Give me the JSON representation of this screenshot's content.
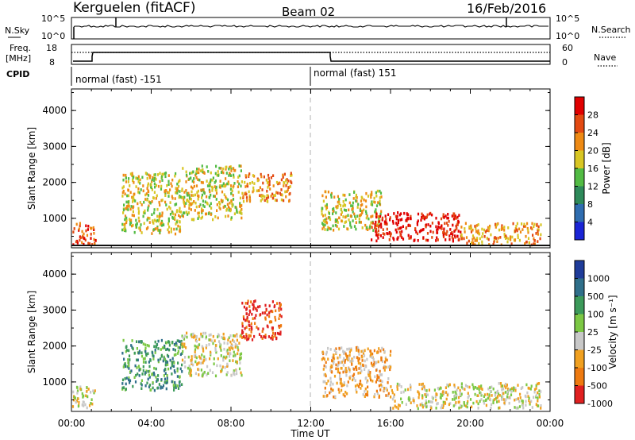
{
  "header": {
    "station": "Kerguelen (fitACF)",
    "beam": "Beam 02",
    "date": "16/Feb/2016"
  },
  "noise_panel": {
    "left_label": "N.Sky",
    "right_label": "N.Search",
    "left_ticks": [
      "10^5",
      "10^0"
    ],
    "right_ticks": [
      "10^5",
      "10^0"
    ]
  },
  "freq_panel": {
    "left_label_1": "Freq.",
    "left_label_2": "[MHz]",
    "right_label": "Nave",
    "left_ticks": [
      "18",
      "8"
    ],
    "right_ticks": [
      "60",
      "0"
    ]
  },
  "cpid": {
    "label": "CPID",
    "segments": [
      {
        "text": "normal (fast) -151",
        "start_hour": 0
      },
      {
        "text": "normal (fast) 151",
        "start_hour": 12
      }
    ]
  },
  "x_axis": {
    "label": "Time UT",
    "ticks": [
      "00:00",
      "04:00",
      "08:00",
      "12:00",
      "16:00",
      "20:00",
      "00:00"
    ]
  },
  "chart_data": [
    {
      "type": "heatmap",
      "name": "power",
      "ylabel": "Slant Range [km]",
      "yticks": [
        "1000",
        "2000",
        "3000",
        "4000"
      ],
      "ylim": [
        180,
        4600
      ],
      "xlim": [
        0,
        24
      ],
      "colorbar_label": "Power [dB]",
      "colorbar_ticks": [
        "4",
        "8",
        "12",
        "16",
        "20",
        "24",
        "28"
      ],
      "colors": [
        "#1a25d6",
        "#2f6db0",
        "#2e8a5a",
        "#52bb44",
        "#d8c624",
        "#ee8a14",
        "#e34a12",
        "#e00000"
      ],
      "scatter_regions": [
        {
          "t": [
            0,
            1.2
          ],
          "r": [
            300,
            900
          ],
          "level": 6
        },
        {
          "t": [
            2.5,
            5.5
          ],
          "r": [
            600,
            2300
          ],
          "level": 4
        },
        {
          "t": [
            5.5,
            8.5
          ],
          "r": [
            1000,
            2500
          ],
          "level": 4
        },
        {
          "t": [
            8.5,
            11
          ],
          "r": [
            1500,
            2300
          ],
          "level": 5
        },
        {
          "t": [
            12.5,
            15.5
          ],
          "r": [
            700,
            1800
          ],
          "level": 4
        },
        {
          "t": [
            15,
            19.5
          ],
          "r": [
            400,
            1200
          ],
          "level": 7
        },
        {
          "t": [
            19.5,
            23.5
          ],
          "r": [
            300,
            900
          ],
          "level": 5
        }
      ]
    },
    {
      "type": "heatmap",
      "name": "velocity",
      "ylabel": "Slant Range [km]",
      "yticks": [
        "1000",
        "2000",
        "3000",
        "4000"
      ],
      "ylim": [
        180,
        4600
      ],
      "xlim": [
        0,
        24
      ],
      "colorbar_label": "Velocity [m s⁻¹]",
      "colorbar_ticks": [
        "1000",
        "500",
        "100",
        "25",
        "-25",
        "-100",
        "-500",
        "-1000"
      ],
      "colors": [
        "#1f3c9a",
        "#2f6f8a",
        "#3c9a5a",
        "#7cc844",
        "#c8c8c8",
        "#f0a020",
        "#ee7a10",
        "#e02020"
      ],
      "scatter_regions": [
        {
          "t": [
            0,
            1.2
          ],
          "r": [
            300,
            900
          ],
          "level": 4
        },
        {
          "t": [
            2.5,
            5.5
          ],
          "r": [
            800,
            2200
          ],
          "level": 2
        },
        {
          "t": [
            5.5,
            8.5
          ],
          "r": [
            1200,
            2400
          ],
          "level": 4
        },
        {
          "t": [
            8.5,
            10.5
          ],
          "r": [
            2200,
            3300
          ],
          "level": 7
        },
        {
          "t": [
            12.5,
            16
          ],
          "r": [
            600,
            2000
          ],
          "level": 5
        },
        {
          "t": [
            16,
            23.5
          ],
          "r": [
            300,
            1000
          ],
          "level": 4
        }
      ]
    }
  ]
}
